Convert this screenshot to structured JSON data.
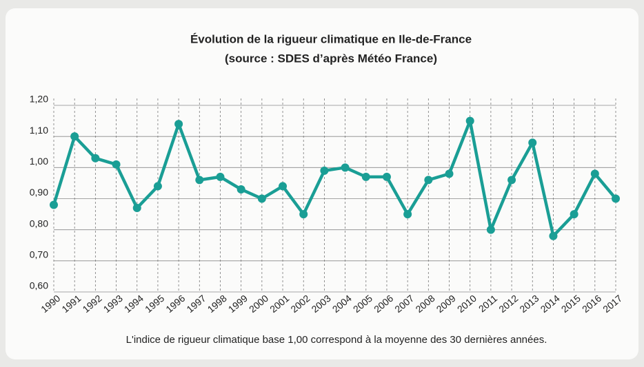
{
  "chart_data": {
    "type": "line",
    "title": "Évolution de la rigueur climatique en Ile-de-France",
    "subtitle": "(source : SDES d’après Météo France)",
    "note": "L'indice de rigueur climatique base 1,00 correspond à la moyenne des 30 dernières années.",
    "categories": [
      "1990",
      "1991",
      "1992",
      "1993",
      "1994",
      "1995",
      "1996",
      "1997",
      "1998",
      "1999",
      "2000",
      "2001",
      "2002",
      "2003",
      "2004",
      "2005",
      "2006",
      "2007",
      "2008",
      "2009",
      "2010",
      "2011",
      "2012",
      "2013",
      "2014",
      "2015",
      "2016",
      "2017"
    ],
    "series": [
      {
        "name": "Indice de rigueur climatique",
        "color": "#1a9e95",
        "values": [
          0.88,
          1.1,
          1.03,
          1.01,
          0.87,
          0.94,
          1.14,
          0.96,
          0.97,
          0.93,
          0.9,
          0.94,
          0.85,
          0.99,
          1.0,
          0.97,
          0.97,
          0.85,
          0.96,
          0.98,
          1.15,
          0.8,
          0.96,
          1.08,
          0.78,
          0.85,
          0.98,
          0.9
        ]
      }
    ],
    "ylim": [
      0.6,
      1.2
    ],
    "yticks": [
      {
        "value": 0.6,
        "label": "0,60"
      },
      {
        "value": 0.7,
        "label": "0,70"
      },
      {
        "value": 0.8,
        "label": "0,80"
      },
      {
        "value": 0.9,
        "label": "0,90"
      },
      {
        "value": 1.0,
        "label": "1,00"
      },
      {
        "value": 1.1,
        "label": "1,10"
      },
      {
        "value": 1.2,
        "label": "1,20"
      }
    ],
    "grid": true
  }
}
